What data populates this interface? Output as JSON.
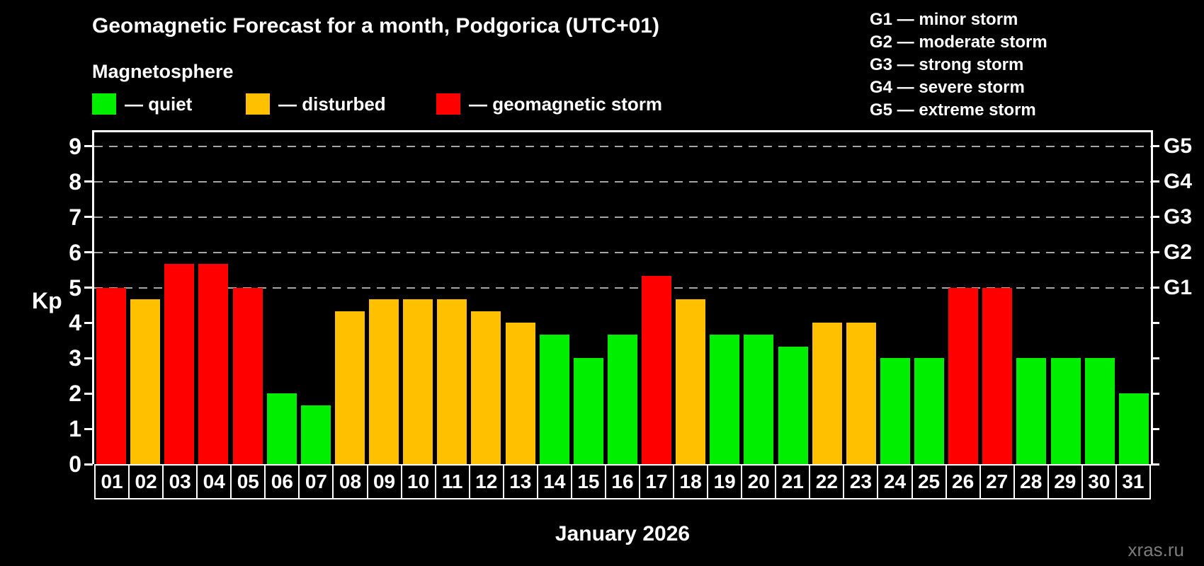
{
  "title": "Geomagnetic Forecast for a month, Podgorica (UTC+01)",
  "legend": {
    "title": "Magnetosphere",
    "quiet_label": "— quiet",
    "disturbed_label": "— disturbed",
    "storm_label": "— geomagnetic storm"
  },
  "g_legend": [
    "G1 — minor storm",
    "G2 — moderate storm",
    "G3 — strong storm",
    "G4 — severe storm",
    "G5 — extreme storm"
  ],
  "colors": {
    "quiet": "#00ee00",
    "disturbed": "#ffc000",
    "storm": "#ff0000",
    "gridline": "#a6a6a6",
    "watermark_text": "#7c7c7c"
  },
  "axes": {
    "y_label": "Kp",
    "y_ticks": [
      0,
      1,
      2,
      3,
      4,
      5,
      6,
      7,
      8,
      9
    ],
    "g_scale": [
      {
        "label": "G1",
        "value": 5
      },
      {
        "label": "G2",
        "value": 6
      },
      {
        "label": "G3",
        "value": 7
      },
      {
        "label": "G4",
        "value": 8
      },
      {
        "label": "G5",
        "value": 9
      }
    ],
    "x_label": "January 2026"
  },
  "watermark": "xras.ru",
  "chart_data": {
    "type": "bar",
    "title": "Geomagnetic Forecast for a month, Podgorica (UTC+01)",
    "xlabel": "January 2026",
    "ylabel": "Kp",
    "ylim": [
      0,
      9.4
    ],
    "gridlines": [
      5,
      6,
      7,
      8,
      9
    ],
    "legend_position": "top",
    "categories": [
      "01",
      "02",
      "03",
      "04",
      "05",
      "06",
      "07",
      "08",
      "09",
      "10",
      "11",
      "12",
      "13",
      "14",
      "15",
      "16",
      "17",
      "18",
      "19",
      "20",
      "21",
      "22",
      "23",
      "24",
      "25",
      "26",
      "27",
      "28",
      "29",
      "30",
      "31"
    ],
    "values": [
      5.0,
      4.67,
      5.67,
      5.67,
      5.0,
      2.0,
      1.67,
      4.33,
      4.67,
      4.67,
      4.67,
      4.33,
      4.0,
      3.67,
      3.0,
      3.67,
      5.33,
      4.67,
      3.67,
      3.67,
      3.33,
      4.0,
      4.0,
      3.0,
      3.0,
      5.0,
      5.0,
      3.0,
      3.0,
      3.0,
      2.0
    ],
    "statuses": [
      "storm",
      "disturbed",
      "storm",
      "storm",
      "storm",
      "quiet",
      "quiet",
      "disturbed",
      "disturbed",
      "disturbed",
      "disturbed",
      "disturbed",
      "disturbed",
      "quiet",
      "quiet",
      "quiet",
      "storm",
      "disturbed",
      "quiet",
      "quiet",
      "quiet",
      "disturbed",
      "disturbed",
      "quiet",
      "quiet",
      "storm",
      "storm",
      "quiet",
      "quiet",
      "quiet",
      "quiet"
    ]
  }
}
